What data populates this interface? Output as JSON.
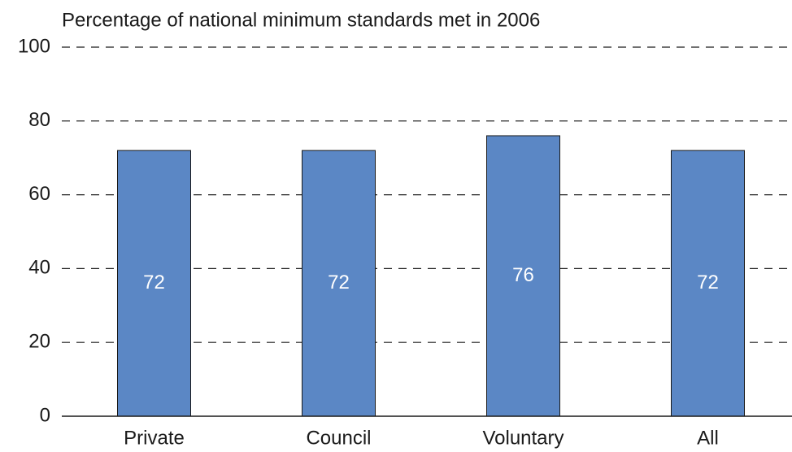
{
  "chart_data": {
    "type": "bar",
    "title": "Percentage of national minimum standards met in 2006",
    "categories": [
      "Private",
      "Council",
      "Voluntary",
      "All"
    ],
    "values": [
      72,
      72,
      76,
      72
    ],
    "color": "#5b87c5",
    "ylim": [
      0,
      100
    ],
    "yticks": [
      0,
      20,
      40,
      60,
      80,
      100
    ],
    "grid": true
  }
}
